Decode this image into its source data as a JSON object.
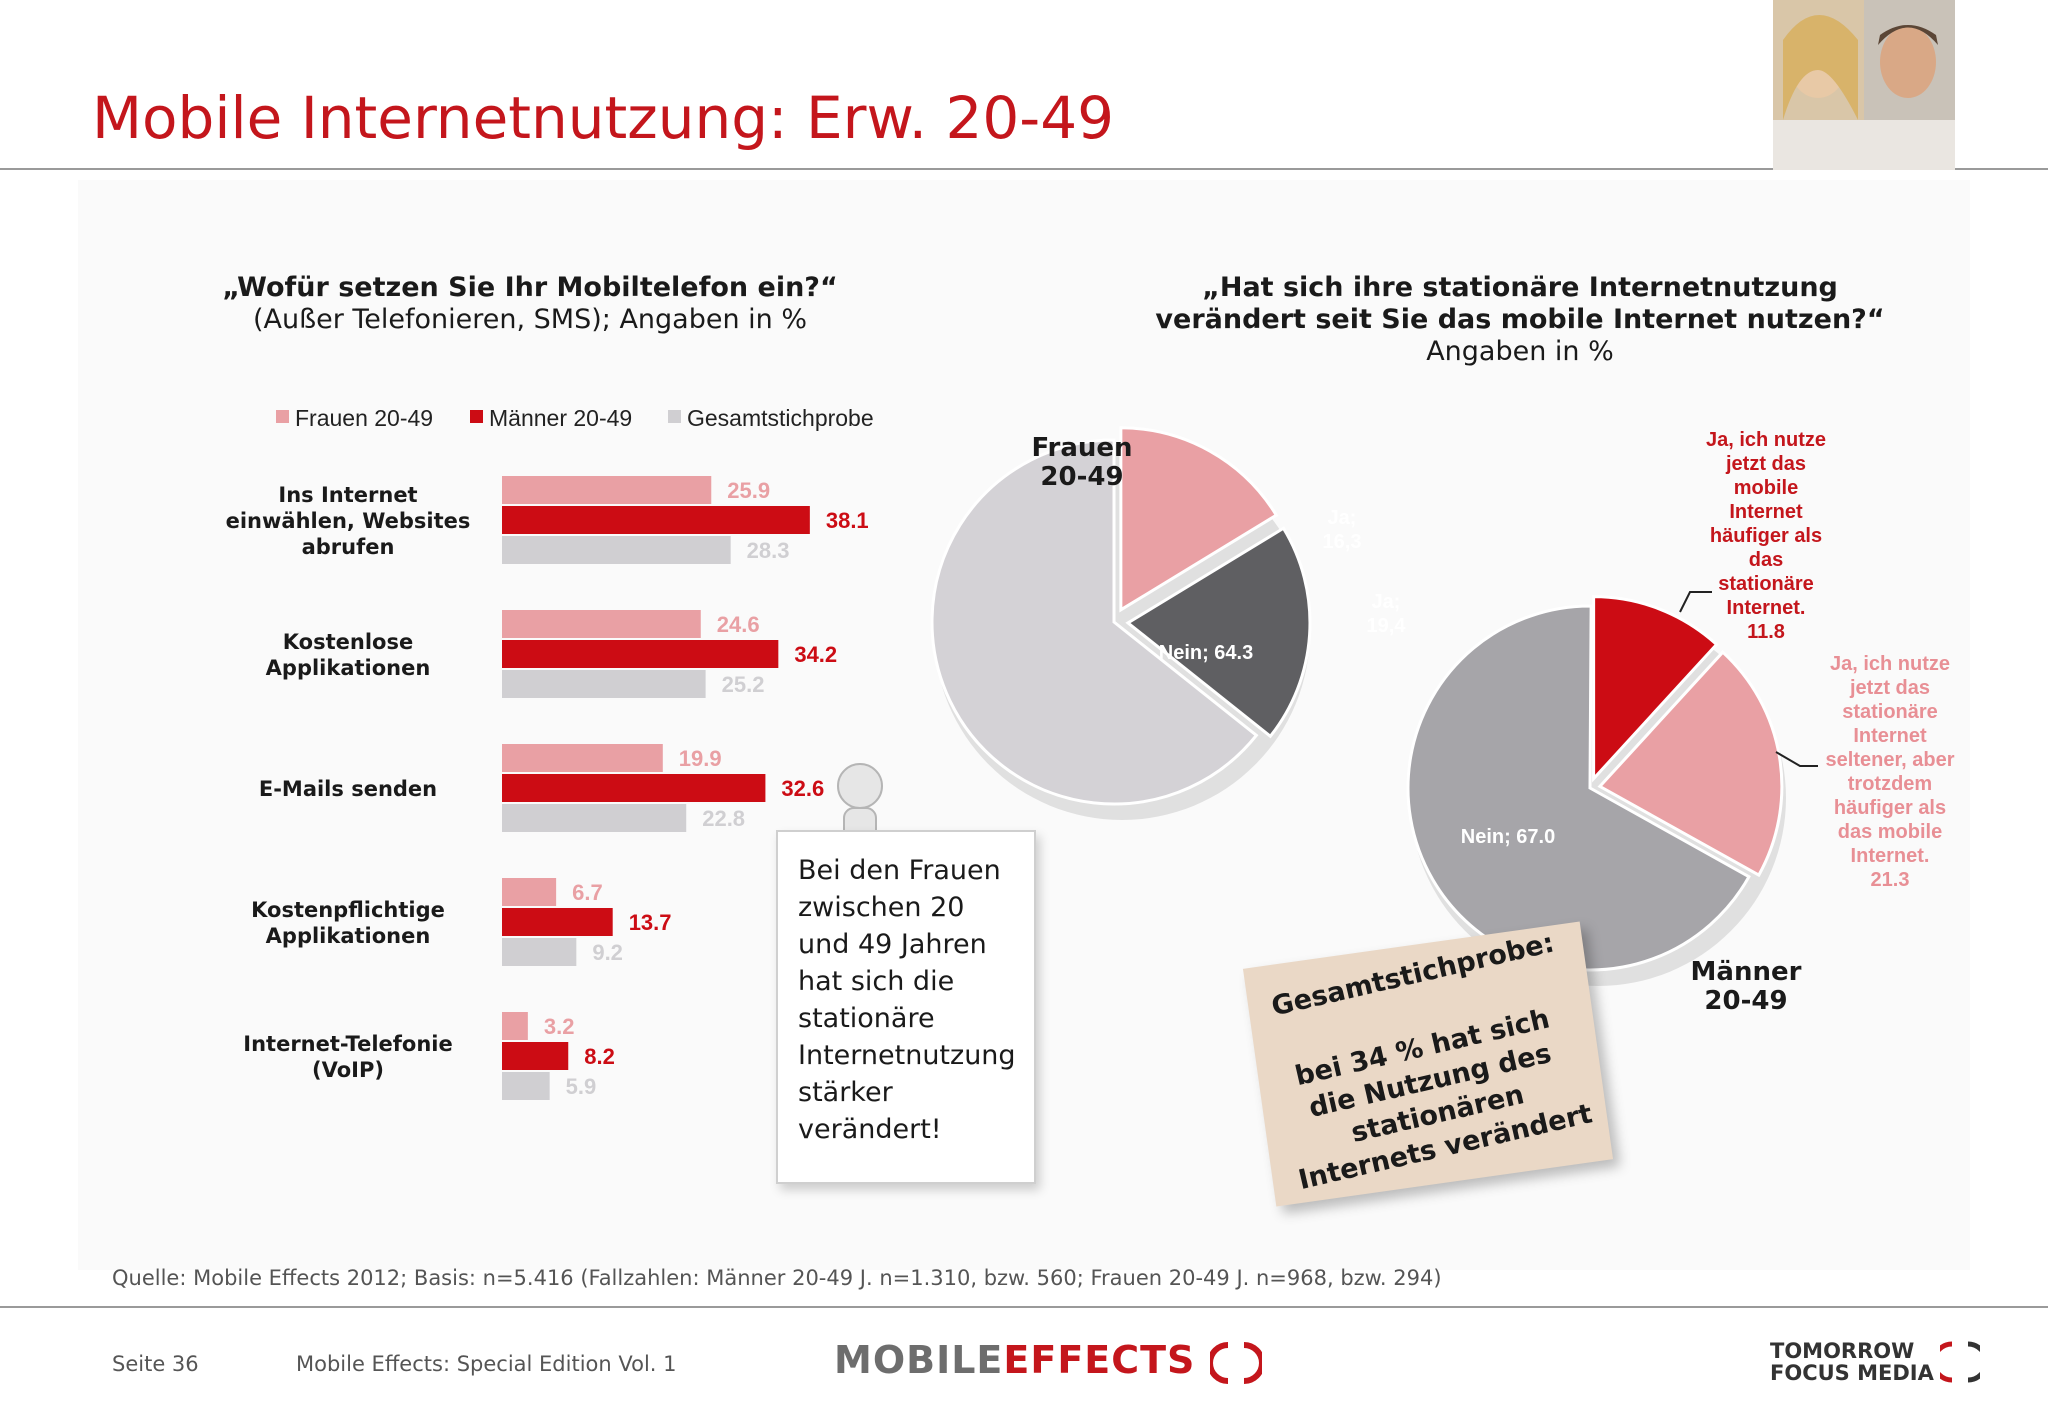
{
  "slide_title": "Mobile Internetnutzung: Erw. 20-49",
  "colors": {
    "accent": "#c4161c",
    "frauen": "#e9a0a4",
    "maenner": "#cc0c14",
    "gesamt": "#d0cfd2",
    "pie_nein_frauen": "#d4d2d6",
    "pie_ja2_frauen": "#5f5f62",
    "pie_nein_maenner": "#a6a5a9"
  },
  "left_question": {
    "line1": "„Wofür setzen Sie Ihr Mobiltelefon ein?“",
    "line2": "(Außer Telefonieren, SMS); Angaben in %"
  },
  "right_question": {
    "line1": "„Hat sich ihre stationäre Internetnutzung",
    "line2": "verändert seit Sie das mobile Internet nutzen?“",
    "line3": "Angaben in %"
  },
  "chart_data": [
    {
      "type": "bar",
      "orientation": "horizontal",
      "categories": [
        "Ins Internet einwählen, Websites abrufen",
        "Kostenlose Applikationen",
        "E-Mails senden",
        "Kostenpflichtige Applikationen",
        "Internet-Telefonie (VoIP)"
      ],
      "category_lines": [
        [
          "Ins Internet",
          "einwählen, Websites",
          "abrufen"
        ],
        [
          "Kostenlose",
          "Applikationen"
        ],
        [
          "E-Mails senden"
        ],
        [
          "Kostenpflichtige",
          "Applikationen"
        ],
        [
          "Internet-Telefonie",
          "(VoIP)"
        ]
      ],
      "series": [
        {
          "name": "Frauen 20-49",
          "values": [
            25.9,
            24.6,
            19.9,
            6.7,
            3.2
          ],
          "labels": [
            "25.9",
            "24.6",
            "19.9",
            "6.7",
            "3.2"
          ]
        },
        {
          "name": "Männer 20-49",
          "values": [
            38.1,
            34.2,
            32.6,
            13.7,
            8.2
          ],
          "labels": [
            "38.1",
            "34.2",
            "32.6",
            "13.7",
            "8.2"
          ]
        },
        {
          "name": "Gesamtstichprobe",
          "values": [
            28.3,
            25.2,
            22.8,
            9.2,
            5.9
          ],
          "labels": [
            "28.3",
            "25.2",
            "22.8",
            "9.2",
            "5.9"
          ]
        }
      ],
      "legend": "top",
      "grid": false
    },
    {
      "type": "pie",
      "name": "Frauen 20-49",
      "slices": [
        {
          "label": "Ja",
          "value": 16.3,
          "text": "Ja; 16,3"
        },
        {
          "label": "Ja",
          "value": 19.4,
          "text": "Ja; 19,4"
        },
        {
          "label": "Nein",
          "value": 64.3,
          "text": "Nein; 64.3"
        }
      ]
    },
    {
      "type": "pie",
      "name": "Männer 20-49",
      "slices": [
        {
          "label": "Ja, ich nutze jetzt das mobile Internet häufiger als das stationäre Internet.",
          "value": 11.8
        },
        {
          "label": "Ja, ich nutze jetzt das stationäre Internet seltener, aber trotzdem häufiger als das mobile Internet.",
          "value": 21.3
        },
        {
          "label": "Nein",
          "value": 67.0,
          "text": "Nein; 67.0"
        }
      ]
    }
  ],
  "pie_texts": {
    "frauen_title_1": "Frauen",
    "frauen_title_2": "20-49",
    "maenner_title_1": "Männer",
    "maenner_title_2": "20-49",
    "f_ja1_a": "Ja;",
    "f_ja1_b": "16,3",
    "f_ja2_a": "Ja;",
    "f_ja2_b": "19,4",
    "f_nein": "Nein; 64.3",
    "m_nein": "Nein; 67.0",
    "ann_red": [
      "Ja, ich nutze",
      "jetzt das",
      "mobile",
      "Internet",
      "häufiger als",
      "das",
      "stationäre",
      "Internet.",
      "11.8"
    ],
    "ann_pink": [
      "Ja, ich nutze",
      "jetzt das",
      "stationäre",
      "Internet",
      "seltener, aber",
      "trotzdem",
      "häufiger als",
      "das mobile",
      "Internet.",
      "21.3"
    ]
  },
  "note": [
    "Bei den Frauen",
    "zwischen 20",
    "und 49 Jahren",
    "hat sich die",
    "stationäre",
    "Internetnutzung",
    "stärker",
    "verändert!"
  ],
  "sticker": {
    "heading": "Gesamtstichprobe:",
    "body": [
      "bei 34 % hat sich",
      "die Nutzung des",
      "stationären",
      "Internets verändert"
    ]
  },
  "footer": {
    "source": "Quelle: Mobile Effects 2012; Basis: n=5.416 (Fallzahlen: Männer 20-49 J. n=1.310, bzw. 560; Frauen 20-49 J. n=968, bzw. 294)",
    "page": "Seite 36",
    "edition": "Mobile Effects: Special Edition Vol. 1",
    "logo_left_a": "MOBILE",
    "logo_left_b": "EFFECTS",
    "logo_right_1": "TOMORROW",
    "logo_right_2": "FOCUS MEDIA"
  }
}
